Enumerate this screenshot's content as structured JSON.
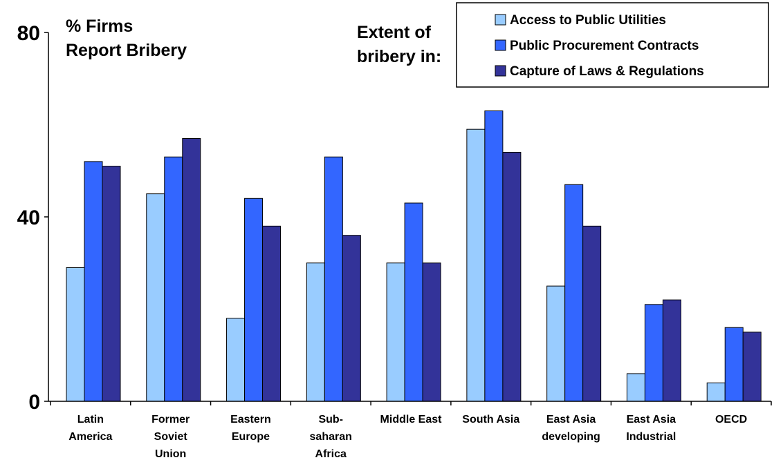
{
  "chart_data": {
    "type": "bar",
    "ylabel": [
      "% Firms",
      "Report Bribery"
    ],
    "annotation": [
      "Extent of",
      "bribery in:"
    ],
    "categories": [
      [
        "Latin",
        "America"
      ],
      [
        "Former",
        "Soviet",
        "Union"
      ],
      [
        "Eastern",
        "Europe"
      ],
      [
        "Sub-",
        "saharan",
        "Africa"
      ],
      [
        "Middle East"
      ],
      [
        "South Asia"
      ],
      [
        "East Asia",
        "developing"
      ],
      [
        "East Asia",
        "Industrial"
      ],
      [
        "OECD"
      ]
    ],
    "series": [
      {
        "name": "Access to Public Utilities",
        "color": "#99ccff",
        "values": [
          29,
          45,
          18,
          30,
          30,
          59,
          25,
          6,
          4
        ]
      },
      {
        "name": "Public Procurement Contracts",
        "color": "#3366ff",
        "values": [
          52,
          53,
          44,
          53,
          43,
          63,
          47,
          21,
          16
        ]
      },
      {
        "name": "Capture of Laws & Regulations",
        "color": "#333399",
        "values": [
          51,
          57,
          38,
          36,
          30,
          54,
          38,
          22,
          15
        ]
      }
    ],
    "yticks": [
      0,
      40,
      80
    ],
    "ylim": [
      0,
      80
    ],
    "grid": false,
    "legend": "top-right"
  }
}
